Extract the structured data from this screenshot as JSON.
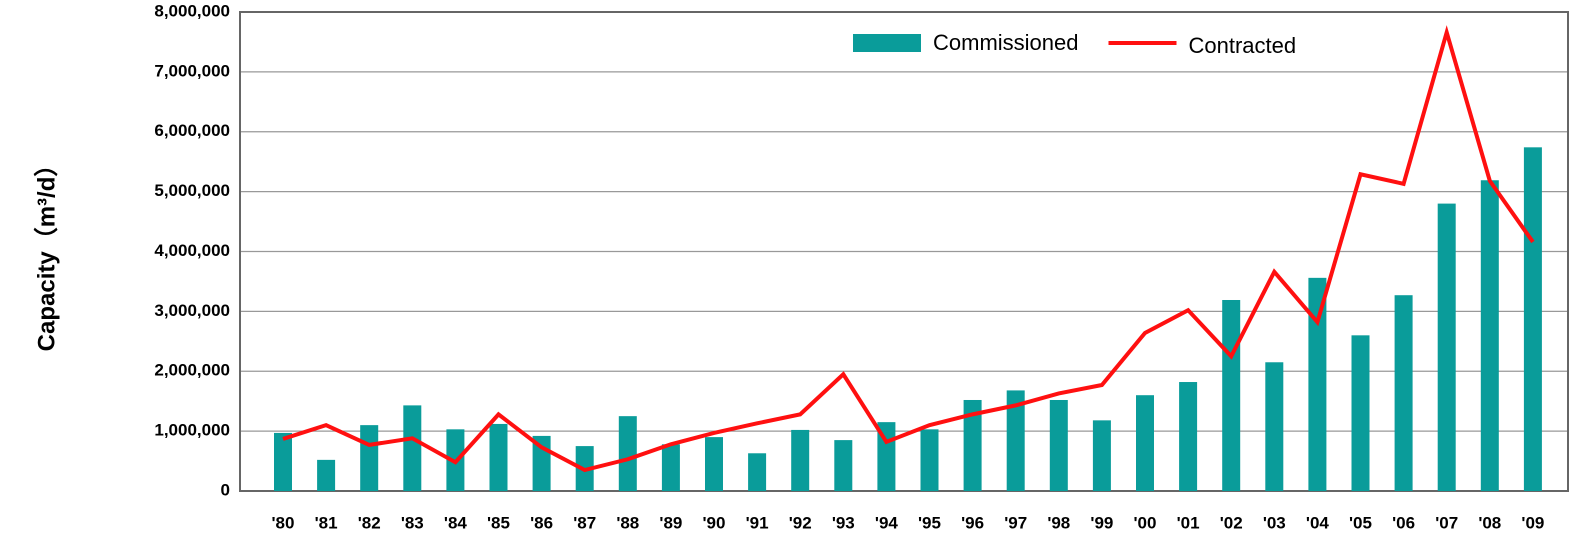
{
  "chart_data": {
    "type": "bar_line",
    "y_label": "Capacity（m³/d）",
    "categories": [
      "'80",
      "'81",
      "'82",
      "'83",
      "'84",
      "'85",
      "'86",
      "'87",
      "'88",
      "'89",
      "'90",
      "'91",
      "'92",
      "'93",
      "'94",
      "'95",
      "'96",
      "'97",
      "'98",
      "'99",
      "'00",
      "'01",
      "'02",
      "'03",
      "'04",
      "'05",
      "'06",
      "'07",
      "'08",
      "'09"
    ],
    "series": [
      {
        "name": "Commissioned",
        "type": "bar",
        "color": "#0a9c9a",
        "values": [
          970000,
          520000,
          1100000,
          1430000,
          1030000,
          1120000,
          920000,
          750000,
          1250000,
          780000,
          900000,
          630000,
          1020000,
          850000,
          1150000,
          1030000,
          1520000,
          1680000,
          1520000,
          1180000,
          1600000,
          1820000,
          3190000,
          2150000,
          3560000,
          2600000,
          3270000,
          4800000,
          5190000,
          5740000
        ]
      },
      {
        "name": "Contracted",
        "type": "line",
        "color": "#ff1010",
        "values": [
          870000,
          1100000,
          770000,
          880000,
          480000,
          1280000,
          730000,
          350000,
          530000,
          780000,
          970000,
          1130000,
          1280000,
          1950000,
          820000,
          1100000,
          1280000,
          1430000,
          1630000,
          1770000,
          2640000,
          3020000,
          2250000,
          3660000,
          2820000,
          5290000,
          5130000,
          7660000,
          5180000,
          4160000
        ]
      }
    ],
    "ylim": [
      0,
      8000000
    ],
    "yticks": [
      0,
      {
        "value": 1000000,
        "label": "1,000,000"
      },
      {
        "value": 2000000,
        "label": "2,000,000"
      },
      {
        "value": 3000000,
        "label": "3,000,000"
      },
      {
        "value": 4000000,
        "label": "4,000,000"
      },
      {
        "value": 5000000,
        "label": "5,000,000"
      },
      {
        "value": 6000000,
        "label": "6,000,000"
      },
      {
        "value": 7000000,
        "label": "7,000,000"
      },
      {
        "value": 8000000,
        "label": {
          "value": 8000000,
          "label": "8,000,000"
        }
      }
    ],
    "grid": true,
    "legend": "top-right"
  }
}
